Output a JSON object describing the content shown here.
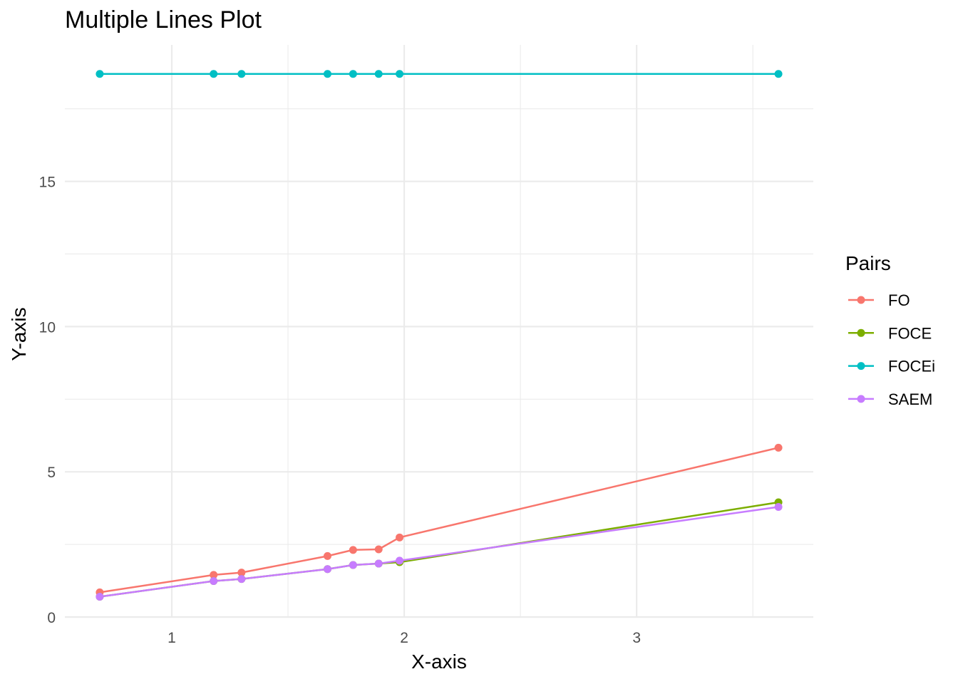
{
  "chart_data": {
    "type": "line",
    "title": "Multiple Lines Plot",
    "xlabel": "X-axis",
    "ylabel": "Y-axis",
    "xlim": [
      0.54,
      3.76
    ],
    "ylim": [
      0,
      19.7
    ],
    "x_ticks": [
      1,
      2,
      3
    ],
    "x_minor_ticks": [
      1.5,
      2.5,
      3.5
    ],
    "y_ticks": [
      0,
      5,
      10,
      15
    ],
    "y_minor_ticks": [
      2.5,
      7.5,
      12.5,
      17.5
    ],
    "grid": true,
    "legend": {
      "title": "Pairs",
      "position": "right"
    },
    "x": [
      0.69,
      1.18,
      1.3,
      1.67,
      1.78,
      1.89,
      1.98,
      3.61
    ],
    "series": [
      {
        "name": "FO",
        "color": "#F8766D",
        "values": [
          0.85,
          1.45,
          1.53,
          2.1,
          2.31,
          2.33,
          2.74,
          5.83
        ]
      },
      {
        "name": "FOCE",
        "color": "#7CAE00",
        "values": [
          0.7,
          1.24,
          1.31,
          1.65,
          1.79,
          1.84,
          1.89,
          3.95
        ]
      },
      {
        "name": "FOCEi",
        "color": "#00BFC4",
        "values": [
          18.7,
          18.7,
          18.7,
          18.7,
          18.7,
          18.7,
          18.7,
          18.7
        ]
      },
      {
        "name": "SAEM",
        "color": "#C77CFF",
        "values": [
          0.7,
          1.24,
          1.31,
          1.65,
          1.79,
          1.84,
          1.94,
          3.79
        ]
      }
    ]
  }
}
